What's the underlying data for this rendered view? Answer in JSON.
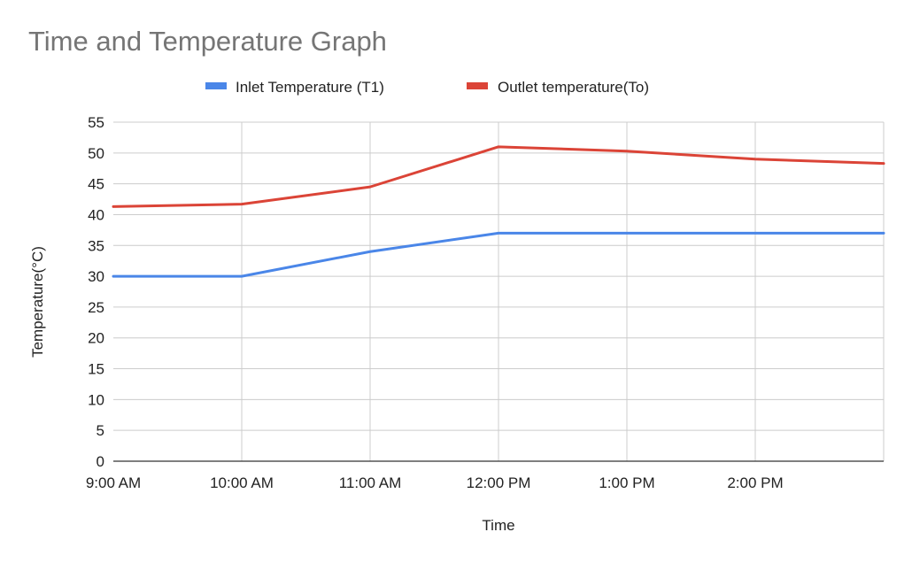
{
  "chart_data": {
    "type": "line",
    "title": "Time and Temperature Graph",
    "xlabel": "Time",
    "ylabel": "Temperature(°C)",
    "ylim": [
      0,
      55
    ],
    "y_ticks": [
      0,
      5,
      10,
      15,
      20,
      25,
      30,
      35,
      40,
      45,
      50,
      55
    ],
    "categories": [
      "9:00 AM",
      "10:00 AM",
      "11:00 AM",
      "12:00 PM",
      "1:00 PM",
      "2:00 PM",
      ""
    ],
    "grid": true,
    "legend_position": "top-center",
    "series": [
      {
        "name": "Inlet Temperature (T1)",
        "color": "#4a86e8",
        "values": [
          30,
          30,
          34,
          37,
          37,
          37,
          37
        ]
      },
      {
        "name": "Outlet temperature(To)",
        "color": "#db4437",
        "values": [
          41.3,
          41.7,
          44.5,
          51,
          50.3,
          49,
          48.3
        ]
      }
    ]
  }
}
